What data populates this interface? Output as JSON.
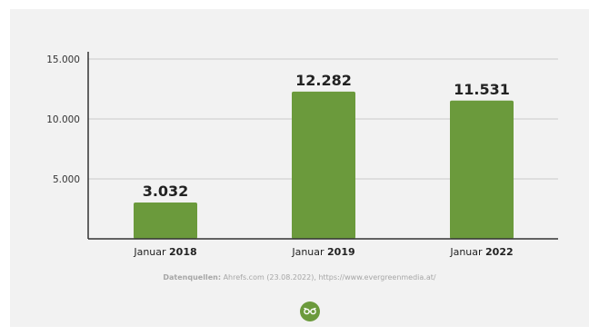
{
  "colors": {
    "bar": "#6b9a3c",
    "axis": "#333333",
    "grid": "#c9c9c9",
    "logo": "#6b9a3c"
  },
  "logo": {
    "icon": "owl-glasses-icon"
  },
  "source": {
    "label": "Datenquellen:",
    "text": "Ahrefs.com (23.08.2022), https://www.evergreenmedia.at/"
  },
  "chart_data": {
    "type": "bar",
    "categories": [
      {
        "prefix": "Januar",
        "year": "2018"
      },
      {
        "prefix": "Januar",
        "year": "2019"
      },
      {
        "prefix": "Januar",
        "year": "2022"
      }
    ],
    "values": [
      3032,
      12282,
      11531
    ],
    "data_labels": [
      "3.032",
      "12.282",
      "11.531"
    ],
    "yticks": [
      {
        "value": 5000,
        "label": "5.000"
      },
      {
        "value": 10000,
        "label": "10.000"
      },
      {
        "value": 15000,
        "label": "15.000"
      }
    ],
    "ylim": [
      0,
      15000
    ],
    "grid": true,
    "title": "",
    "xlabel": "",
    "ylabel": ""
  }
}
